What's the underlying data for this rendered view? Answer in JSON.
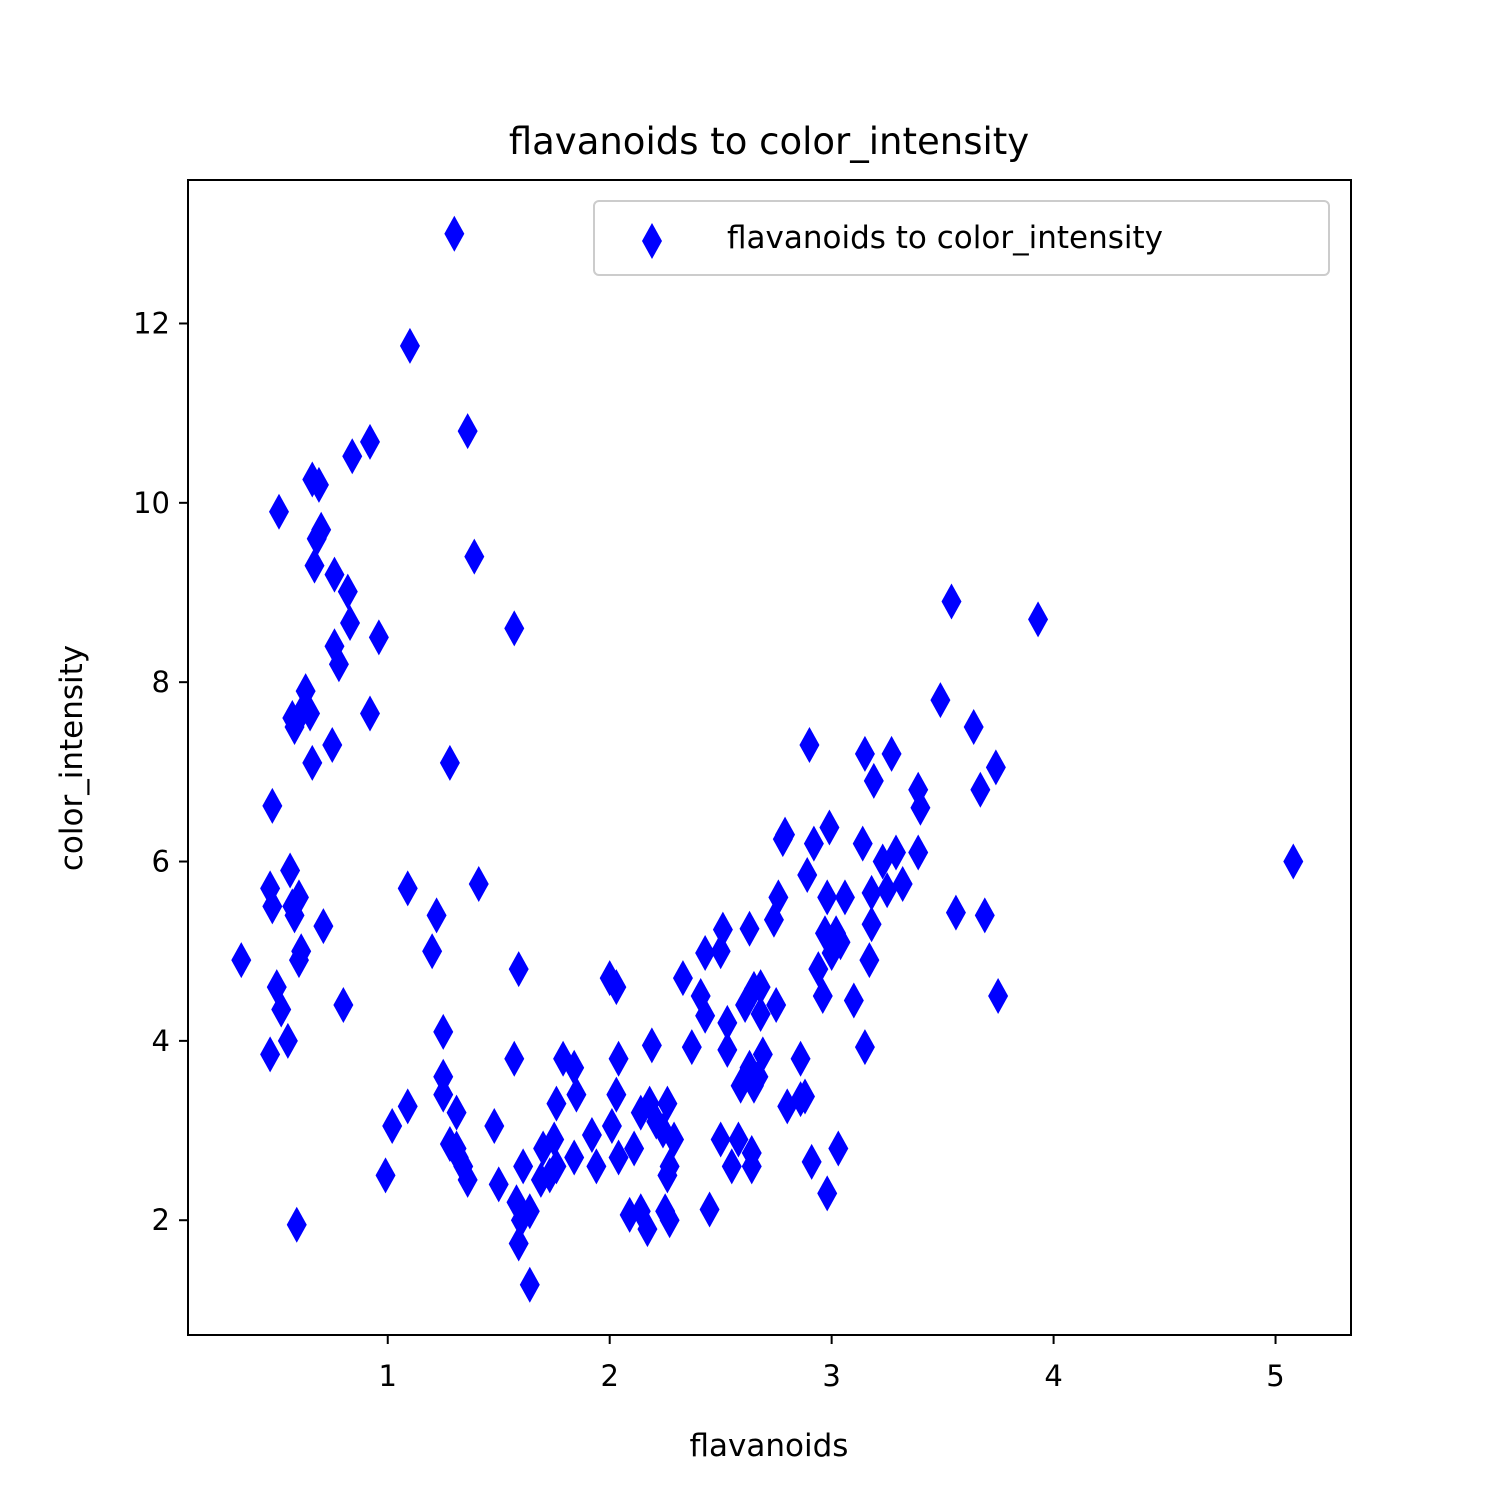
{
  "chart_data": {
    "type": "scatter",
    "title": "flavanoids to color_intensity",
    "xlabel": "flavanoids",
    "ylabel": "color_intensity",
    "xlim": [
      0.1,
      5.34
    ],
    "ylim": [
      0.72,
      13.6
    ],
    "xticks": [
      1,
      2,
      3,
      4,
      5
    ],
    "yticks": [
      2,
      4,
      6,
      8,
      10,
      12
    ],
    "grid": false,
    "legend_position": "top-right",
    "marker": "thin-diamond",
    "marker_color": "#0000ff",
    "series": [
      {
        "name": "flavanoids to color_intensity",
        "color": "#0000ff",
        "points": [
          [
            0.34,
            4.9
          ],
          [
            0.47,
            3.85
          ],
          [
            0.47,
            5.7
          ],
          [
            0.48,
            5.5
          ],
          [
            0.48,
            6.62
          ],
          [
            0.5,
            4.6
          ],
          [
            0.51,
            9.9
          ],
          [
            0.52,
            4.35
          ],
          [
            0.55,
            4.0
          ],
          [
            0.56,
            5.9
          ],
          [
            0.57,
            7.6
          ],
          [
            0.57,
            5.5
          ],
          [
            0.58,
            7.5
          ],
          [
            0.58,
            5.4
          ],
          [
            0.59,
            1.95
          ],
          [
            0.6,
            5.6
          ],
          [
            0.6,
            4.9
          ],
          [
            0.61,
            5.0
          ],
          [
            0.62,
            7.7
          ],
          [
            0.63,
            7.9
          ],
          [
            0.65,
            7.65
          ],
          [
            0.66,
            7.1
          ],
          [
            0.66,
            10.26
          ],
          [
            0.67,
            9.3
          ],
          [
            0.68,
            9.6
          ],
          [
            0.69,
            10.2
          ],
          [
            0.7,
            9.7
          ],
          [
            0.71,
            5.28
          ],
          [
            0.75,
            7.3
          ],
          [
            0.76,
            8.4
          ],
          [
            0.76,
            9.2
          ],
          [
            0.78,
            8.2
          ],
          [
            0.8,
            4.4
          ],
          [
            0.82,
            9.01
          ],
          [
            0.83,
            8.66
          ],
          [
            0.84,
            10.52
          ],
          [
            0.92,
            10.68
          ],
          [
            0.92,
            7.65
          ],
          [
            0.96,
            8.5
          ],
          [
            0.99,
            2.5
          ],
          [
            1.02,
            3.05
          ],
          [
            1.09,
            3.27
          ],
          [
            1.09,
            5.7
          ],
          [
            1.1,
            11.75
          ],
          [
            1.2,
            5.0
          ],
          [
            1.22,
            5.4
          ],
          [
            1.25,
            4.1
          ],
          [
            1.25,
            3.6
          ],
          [
            1.25,
            3.4
          ],
          [
            1.28,
            2.85
          ],
          [
            1.28,
            7.1
          ],
          [
            1.3,
            13.0
          ],
          [
            1.31,
            2.8
          ],
          [
            1.31,
            3.2
          ],
          [
            1.32,
            2.7
          ],
          [
            1.34,
            2.6
          ],
          [
            1.36,
            10.8
          ],
          [
            1.36,
            2.45
          ],
          [
            1.39,
            9.4
          ],
          [
            1.41,
            5.75
          ],
          [
            1.48,
            3.05
          ],
          [
            1.5,
            2.4
          ],
          [
            1.57,
            3.8
          ],
          [
            1.57,
            8.6
          ],
          [
            1.58,
            2.2
          ],
          [
            1.59,
            1.74
          ],
          [
            1.59,
            4.8
          ],
          [
            1.6,
            2.0
          ],
          [
            1.61,
            2.6
          ],
          [
            1.64,
            2.1
          ],
          [
            1.64,
            1.28
          ],
          [
            1.69,
            2.45
          ],
          [
            1.7,
            2.8
          ],
          [
            1.73,
            2.5
          ],
          [
            1.75,
            2.9
          ],
          [
            1.76,
            2.6
          ],
          [
            1.76,
            3.3
          ],
          [
            1.79,
            3.8
          ],
          [
            1.84,
            2.7
          ],
          [
            1.84,
            3.7
          ],
          [
            1.85,
            3.4
          ],
          [
            1.92,
            2.95
          ],
          [
            1.94,
            2.6
          ],
          [
            2.0,
            4.7
          ],
          [
            2.01,
            3.05
          ],
          [
            2.03,
            4.6
          ],
          [
            2.03,
            3.4
          ],
          [
            2.04,
            2.7
          ],
          [
            2.04,
            3.8
          ],
          [
            2.09,
            2.06
          ],
          [
            2.11,
            2.8
          ],
          [
            2.14,
            3.2
          ],
          [
            2.14,
            2.1
          ],
          [
            2.17,
            1.9
          ],
          [
            2.18,
            3.3
          ],
          [
            2.19,
            3.95
          ],
          [
            2.21,
            3.1
          ],
          [
            2.24,
            3.0
          ],
          [
            2.25,
            2.1
          ],
          [
            2.26,
            2.5
          ],
          [
            2.26,
            3.3
          ],
          [
            2.27,
            2.0
          ],
          [
            2.27,
            2.6
          ],
          [
            2.29,
            2.9
          ],
          [
            2.33,
            4.7
          ],
          [
            2.37,
            3.93
          ],
          [
            2.41,
            4.5
          ],
          [
            2.43,
            4.28
          ],
          [
            2.43,
            4.98
          ],
          [
            2.45,
            2.12
          ],
          [
            2.5,
            2.9
          ],
          [
            2.5,
            5.0
          ],
          [
            2.51,
            5.24
          ],
          [
            2.53,
            3.9
          ],
          [
            2.53,
            4.2
          ],
          [
            2.55,
            2.6
          ],
          [
            2.58,
            2.9
          ],
          [
            2.59,
            3.5
          ],
          [
            2.61,
            4.4
          ],
          [
            2.63,
            5.25
          ],
          [
            2.63,
            3.7
          ],
          [
            2.64,
            2.6
          ],
          [
            2.64,
            2.75
          ],
          [
            2.65,
            4.58
          ],
          [
            2.65,
            3.5
          ],
          [
            2.67,
            3.6
          ],
          [
            2.68,
            4.3
          ],
          [
            2.68,
            4.6
          ],
          [
            2.69,
            3.85
          ],
          [
            2.74,
            5.35
          ],
          [
            2.75,
            4.4
          ],
          [
            2.76,
            5.6
          ],
          [
            2.78,
            6.25
          ],
          [
            2.79,
            6.3
          ],
          [
            2.8,
            3.27
          ],
          [
            2.86,
            3.8
          ],
          [
            2.86,
            3.35
          ],
          [
            2.88,
            3.38
          ],
          [
            2.89,
            5.85
          ],
          [
            2.9,
            7.3
          ],
          [
            2.91,
            2.65
          ],
          [
            2.92,
            6.2
          ],
          [
            2.94,
            4.8
          ],
          [
            2.96,
            4.5
          ],
          [
            2.97,
            5.2
          ],
          [
            2.98,
            2.3
          ],
          [
            2.98,
            5.6
          ],
          [
            2.99,
            6.38
          ],
          [
            3.0,
            4.98
          ],
          [
            3.02,
            5.2
          ],
          [
            3.03,
            2.8
          ],
          [
            3.04,
            5.1
          ],
          [
            3.06,
            5.6
          ],
          [
            3.1,
            4.45
          ],
          [
            3.14,
            6.2
          ],
          [
            3.15,
            3.93
          ],
          [
            3.15,
            7.2
          ],
          [
            3.17,
            4.9
          ],
          [
            3.18,
            5.3
          ],
          [
            3.18,
            5.65
          ],
          [
            3.19,
            6.9
          ],
          [
            3.23,
            6.0
          ],
          [
            3.25,
            5.68
          ],
          [
            3.27,
            7.2
          ],
          [
            3.29,
            6.1
          ],
          [
            3.32,
            5.75
          ],
          [
            3.39,
            6.1
          ],
          [
            3.39,
            6.8
          ],
          [
            3.4,
            6.6
          ],
          [
            3.49,
            7.8
          ],
          [
            3.54,
            8.9
          ],
          [
            3.56,
            5.43
          ],
          [
            3.64,
            7.5
          ],
          [
            3.67,
            6.8
          ],
          [
            3.69,
            5.4
          ],
          [
            3.74,
            7.05
          ],
          [
            3.75,
            4.5
          ],
          [
            3.93,
            8.7
          ],
          [
            5.08,
            6.0
          ]
        ]
      }
    ]
  }
}
